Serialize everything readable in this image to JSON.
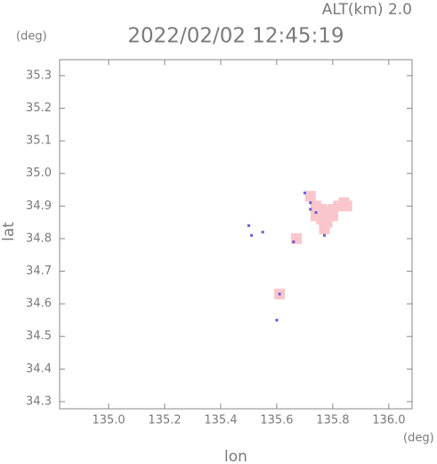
{
  "chart_data": {
    "type": "scatter",
    "title": "2022/02/02 12:45:19",
    "subtitle": "ALT(km) 2.0",
    "x_label": "lon",
    "y_label": "lat",
    "x_unit": "(deg)",
    "y_unit": "(deg)",
    "xlim": [
      134.825,
      136.083
    ],
    "ylim": [
      34.278,
      35.349
    ],
    "xticks": [
      {
        "value": 135.0,
        "label": "135.0"
      },
      135.2,
      135.4,
      135.6,
      135.8,
      {
        "value": 136.0,
        "label": "136.0"
      }
    ],
    "yticks": [
      34.3,
      34.4,
      34.5,
      34.6,
      34.7,
      34.8,
      34.9,
      {
        "value": 35.0,
        "label": "35.0"
      },
      35.1,
      35.2,
      35.3
    ],
    "grid": false,
    "series": [
      {
        "color": "#f9c6cb",
        "x": [
          135.72,
          135.74,
          135.76,
          135.78,
          135.8,
          135.82,
          135.84,
          135.85,
          135.76,
          135.78,
          135.8,
          135.74,
          135.77,
          135.61,
          135.67
        ],
        "values": [
          34.93,
          34.9,
          34.89,
          34.88,
          34.89,
          34.9,
          34.91,
          34.9,
          34.86,
          34.85,
          34.87,
          34.87,
          34.83,
          34.63,
          34.8
        ]
      },
      {
        "color": "#6a5ae0",
        "x": [
          135.7,
          135.72,
          135.74,
          135.72,
          135.51,
          135.55,
          135.66,
          135.61,
          135.6,
          135.77,
          135.5
        ],
        "values": [
          34.94,
          34.89,
          34.88,
          34.91,
          34.81,
          34.82,
          34.79,
          34.63,
          34.55,
          34.81,
          34.84
        ]
      }
    ]
  }
}
